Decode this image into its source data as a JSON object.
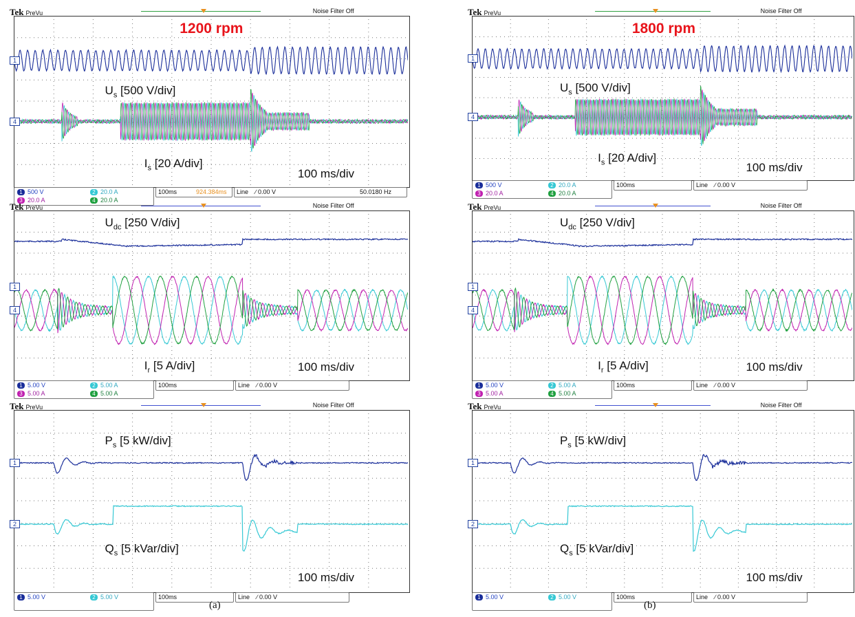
{
  "figure": {
    "caption_a": "(a)",
    "caption_b": "(b)"
  },
  "scope": {
    "brand": "Tek",
    "mode": "PreVu",
    "noise_filter": "Noise Filter Off",
    "timebase": "100ms",
    "trigger": "Line",
    "trigger_level": "0.00 V",
    "time_per_div": "100 ms/div"
  },
  "chart_data": [
    {
      "type": "line",
      "id": "a-top",
      "annotation": "1200 rpm",
      "channels": [
        {
          "num": "1",
          "scale": "500 V",
          "color": "#1a2e9a"
        },
        {
          "num": "2",
          "scale": "20.0 A",
          "color": "#35c8d4"
        },
        {
          "num": "3",
          "scale": "20.0 A",
          "color": "#c020b0"
        },
        {
          "num": "4",
          "scale": "20.0 A",
          "color": "#20a040"
        }
      ],
      "extra_status": {
        "trigger_position": "924.384ms",
        "frequency": "50.0180 Hz"
      },
      "labels": [
        {
          "text": "U",
          "sub": "s",
          "rest": " [500 V/div]"
        },
        {
          "text": "I",
          "sub": "s",
          "rest": " [20 A/div]"
        }
      ],
      "channel_markers": [
        "1",
        "4"
      ]
    },
    {
      "type": "line",
      "id": "a-mid",
      "channels": [
        {
          "num": "1",
          "scale": "5.00 V",
          "color": "#1a2e9a"
        },
        {
          "num": "2",
          "scale": "5.00 A",
          "color": "#35c8d4"
        },
        {
          "num": "3",
          "scale": "5.00 A",
          "color": "#c020b0"
        },
        {
          "num": "4",
          "scale": "5.00 A",
          "color": "#20a040"
        }
      ],
      "labels": [
        {
          "text": "U",
          "sub": "dc",
          "rest": " [250 V/div]"
        },
        {
          "text": "I",
          "sub": "r",
          "rest": " [5 A/div]"
        }
      ],
      "channel_markers": [
        "1",
        "4"
      ]
    },
    {
      "type": "line",
      "id": "a-bot",
      "channels": [
        {
          "num": "1",
          "scale": "5.00 V",
          "color": "#1a2e9a"
        },
        {
          "num": "2",
          "scale": "5.00 V",
          "color": "#35c8d4"
        }
      ],
      "labels": [
        {
          "text": "P",
          "sub": "s",
          "rest": " [5 kW/div]"
        },
        {
          "text": "Q",
          "sub": "s",
          "rest": " [5 kVar/div]"
        }
      ],
      "channel_markers": [
        "1",
        "2"
      ]
    },
    {
      "type": "line",
      "id": "b-top",
      "annotation": "1800 rpm",
      "channels": [
        {
          "num": "1",
          "scale": "500 V",
          "color": "#1a2e9a"
        },
        {
          "num": "2",
          "scale": "20.0 A",
          "color": "#35c8d4"
        },
        {
          "num": "3",
          "scale": "20.0 A",
          "color": "#c020b0"
        },
        {
          "num": "4",
          "scale": "20.0 A",
          "color": "#20a040"
        }
      ],
      "labels": [
        {
          "text": "U",
          "sub": "s",
          "rest": " [500 V/div]"
        },
        {
          "text": "I",
          "sub": "s",
          "rest": " [20 A/div]"
        }
      ],
      "channel_markers": [
        "1",
        "4"
      ]
    },
    {
      "type": "line",
      "id": "b-mid",
      "channels": [
        {
          "num": "1",
          "scale": "5.00 V",
          "color": "#1a2e9a"
        },
        {
          "num": "2",
          "scale": "5.00 A",
          "color": "#35c8d4"
        },
        {
          "num": "3",
          "scale": "5.00 A",
          "color": "#c020b0"
        },
        {
          "num": "4",
          "scale": "5.00 A",
          "color": "#20a040"
        }
      ],
      "labels": [
        {
          "text": "U",
          "sub": "dc",
          "rest": " [250 V/div]"
        },
        {
          "text": "I",
          "sub": "r",
          "rest": " [5 A/div]"
        }
      ],
      "channel_markers": [
        "1",
        "4"
      ]
    },
    {
      "type": "line",
      "id": "b-bot",
      "channels": [
        {
          "num": "1",
          "scale": "5.00 V",
          "color": "#1a2e9a"
        },
        {
          "num": "2",
          "scale": "5.00 V",
          "color": "#35c8d4"
        }
      ],
      "labels": [
        {
          "text": "P",
          "sub": "s",
          "rest": " [5 kW/div]"
        },
        {
          "text": "Q",
          "sub": "s",
          "rest": " [5 kVar/div]"
        }
      ],
      "channel_markers": [
        "1",
        "2"
      ]
    }
  ]
}
